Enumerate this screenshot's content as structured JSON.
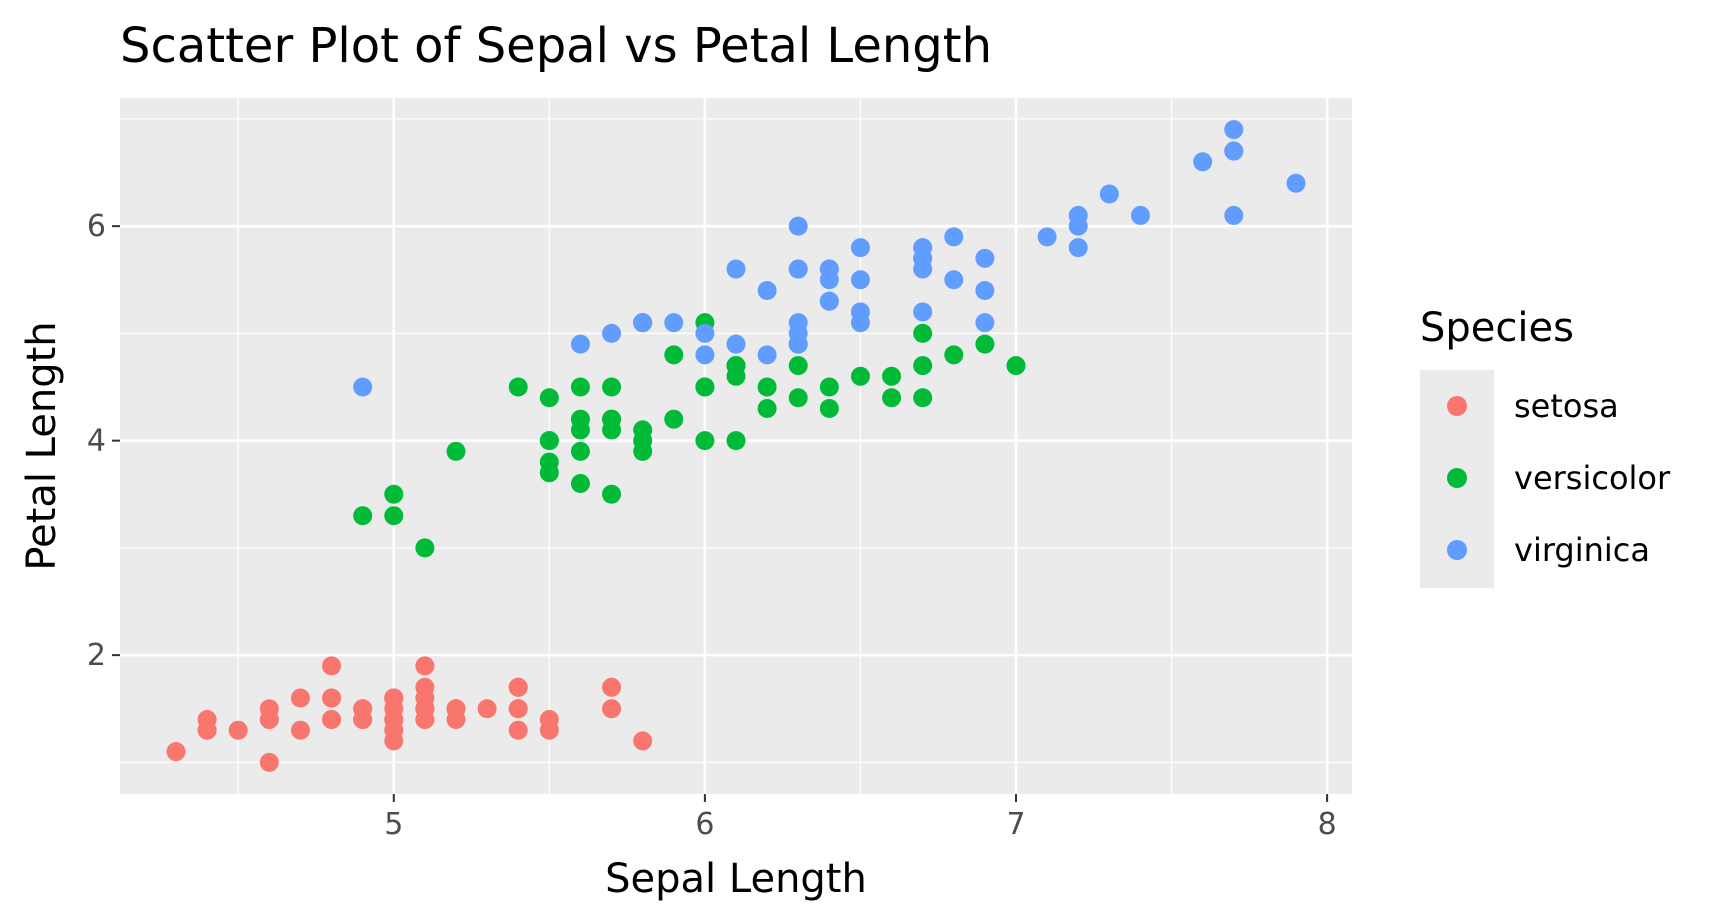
{
  "chart_data": {
    "type": "scatter",
    "title": "Scatter Plot of Sepal vs Petal Length",
    "xlabel": "Sepal Length",
    "ylabel": "Petal Length",
    "xlim": [
      4.12,
      8.08
    ],
    "ylim": [
      0.705,
      7.195
    ],
    "x_ticks": [
      5,
      6,
      7,
      8
    ],
    "x_minor_ticks": [
      4.5,
      5.5,
      6.5,
      7.5
    ],
    "y_ticks": [
      2,
      4,
      6
    ],
    "y_minor_ticks": [
      1,
      3,
      5,
      7
    ],
    "grid": true,
    "panel_color": "#ebebeb",
    "legend": {
      "title": "Species",
      "position": "right"
    },
    "series": [
      {
        "name": "setosa",
        "color": "#F8766D",
        "points": [
          [
            5.1,
            1.4
          ],
          [
            4.9,
            1.4
          ],
          [
            4.7,
            1.3
          ],
          [
            4.6,
            1.5
          ],
          [
            5.0,
            1.4
          ],
          [
            5.4,
            1.7
          ],
          [
            4.6,
            1.4
          ],
          [
            5.0,
            1.5
          ],
          [
            4.4,
            1.4
          ],
          [
            4.9,
            1.5
          ],
          [
            5.4,
            1.5
          ],
          [
            4.8,
            1.6
          ],
          [
            4.8,
            1.4
          ],
          [
            4.3,
            1.1
          ],
          [
            5.8,
            1.2
          ],
          [
            5.7,
            1.5
          ],
          [
            5.4,
            1.3
          ],
          [
            5.1,
            1.4
          ],
          [
            5.7,
            1.7
          ],
          [
            5.1,
            1.5
          ],
          [
            5.4,
            1.7
          ],
          [
            5.1,
            1.5
          ],
          [
            4.6,
            1.0
          ],
          [
            5.1,
            1.7
          ],
          [
            4.8,
            1.9
          ],
          [
            5.0,
            1.6
          ],
          [
            5.0,
            1.6
          ],
          [
            5.2,
            1.5
          ],
          [
            5.2,
            1.4
          ],
          [
            4.7,
            1.6
          ],
          [
            4.8,
            1.6
          ],
          [
            5.4,
            1.5
          ],
          [
            5.2,
            1.5
          ],
          [
            5.5,
            1.4
          ],
          [
            4.9,
            1.5
          ],
          [
            5.0,
            1.2
          ],
          [
            5.5,
            1.3
          ],
          [
            4.9,
            1.4
          ],
          [
            4.4,
            1.3
          ],
          [
            5.1,
            1.5
          ],
          [
            5.0,
            1.3
          ],
          [
            4.5,
            1.3
          ],
          [
            4.4,
            1.3
          ],
          [
            5.0,
            1.6
          ],
          [
            5.1,
            1.9
          ],
          [
            4.8,
            1.4
          ],
          [
            5.1,
            1.6
          ],
          [
            4.6,
            1.4
          ],
          [
            5.3,
            1.5
          ],
          [
            5.0,
            1.4
          ]
        ]
      },
      {
        "name": "versicolor",
        "color": "#00BA38",
        "points": [
          [
            7.0,
            4.7
          ],
          [
            6.4,
            4.5
          ],
          [
            6.9,
            4.9
          ],
          [
            5.5,
            4.0
          ],
          [
            6.5,
            4.6
          ],
          [
            5.7,
            4.5
          ],
          [
            6.3,
            4.7
          ],
          [
            4.9,
            3.3
          ],
          [
            6.6,
            4.6
          ],
          [
            5.2,
            3.9
          ],
          [
            5.0,
            3.5
          ],
          [
            5.9,
            4.2
          ],
          [
            6.0,
            4.0
          ],
          [
            6.1,
            4.7
          ],
          [
            5.6,
            3.6
          ],
          [
            6.7,
            4.4
          ],
          [
            5.6,
            4.5
          ],
          [
            5.8,
            4.1
          ],
          [
            6.2,
            4.5
          ],
          [
            5.6,
            3.9
          ],
          [
            5.9,
            4.8
          ],
          [
            6.1,
            4.0
          ],
          [
            6.3,
            4.9
          ],
          [
            6.1,
            4.7
          ],
          [
            6.4,
            4.3
          ],
          [
            6.6,
            4.4
          ],
          [
            6.8,
            4.8
          ],
          [
            6.7,
            5.0
          ],
          [
            6.0,
            4.5
          ],
          [
            5.7,
            3.5
          ],
          [
            5.5,
            3.8
          ],
          [
            5.5,
            3.7
          ],
          [
            5.8,
            3.9
          ],
          [
            6.0,
            5.1
          ],
          [
            5.4,
            4.5
          ],
          [
            6.0,
            4.5
          ],
          [
            6.7,
            4.7
          ],
          [
            6.3,
            4.4
          ],
          [
            5.6,
            4.1
          ],
          [
            5.5,
            4.0
          ],
          [
            5.5,
            4.4
          ],
          [
            6.1,
            4.6
          ],
          [
            5.8,
            4.0
          ],
          [
            5.0,
            3.3
          ],
          [
            5.6,
            4.2
          ],
          [
            5.7,
            4.2
          ],
          [
            5.7,
            4.2
          ],
          [
            6.2,
            4.3
          ],
          [
            5.1,
            3.0
          ],
          [
            5.7,
            4.1
          ]
        ]
      },
      {
        "name": "virginica",
        "color": "#619CFF",
        "points": [
          [
            6.3,
            6.0
          ],
          [
            5.8,
            5.1
          ],
          [
            7.1,
            5.9
          ],
          [
            6.3,
            5.6
          ],
          [
            6.5,
            5.8
          ],
          [
            7.6,
            6.6
          ],
          [
            4.9,
            4.5
          ],
          [
            7.3,
            6.3
          ],
          [
            6.7,
            5.8
          ],
          [
            7.2,
            6.1
          ],
          [
            6.5,
            5.1
          ],
          [
            6.4,
            5.3
          ],
          [
            6.8,
            5.5
          ],
          [
            5.7,
            5.0
          ],
          [
            5.8,
            5.1
          ],
          [
            6.4,
            5.3
          ],
          [
            6.5,
            5.5
          ],
          [
            7.7,
            6.7
          ],
          [
            7.7,
            6.9
          ],
          [
            6.0,
            5.0
          ],
          [
            6.9,
            5.7
          ],
          [
            5.6,
            4.9
          ],
          [
            7.7,
            6.7
          ],
          [
            6.3,
            4.9
          ],
          [
            6.7,
            5.7
          ],
          [
            7.2,
            6.0
          ],
          [
            6.2,
            4.8
          ],
          [
            6.1,
            4.9
          ],
          [
            6.4,
            5.6
          ],
          [
            7.2,
            5.8
          ],
          [
            7.4,
            6.1
          ],
          [
            7.9,
            6.4
          ],
          [
            6.4,
            5.6
          ],
          [
            6.3,
            5.1
          ],
          [
            6.1,
            5.6
          ],
          [
            7.7,
            6.1
          ],
          [
            6.3,
            5.6
          ],
          [
            6.4,
            5.5
          ],
          [
            6.0,
            4.8
          ],
          [
            6.9,
            5.4
          ],
          [
            6.7,
            5.6
          ],
          [
            6.9,
            5.1
          ],
          [
            5.8,
            5.1
          ],
          [
            6.8,
            5.9
          ],
          [
            6.7,
            5.7
          ],
          [
            6.7,
            5.2
          ],
          [
            6.3,
            5.0
          ],
          [
            6.5,
            5.2
          ],
          [
            6.2,
            5.4
          ],
          [
            5.9,
            5.1
          ]
        ]
      }
    ]
  }
}
